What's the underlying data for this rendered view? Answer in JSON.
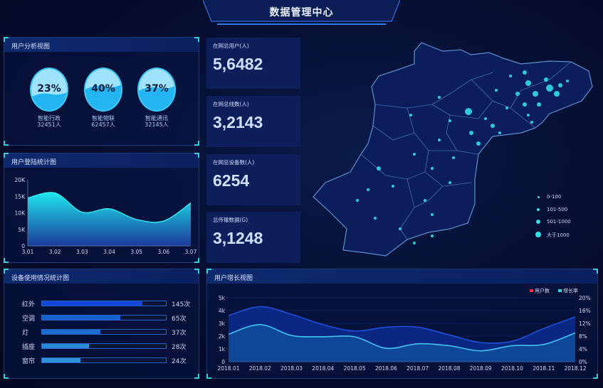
{
  "header": {
    "title": "数据管理中心"
  },
  "user_analysis": {
    "title": "用户分析视图",
    "items": [
      {
        "pct": "23%",
        "name": "智能行政",
        "count": "32451人",
        "level": 0.23
      },
      {
        "pct": "40%",
        "name": "智能物联",
        "count": "62457人",
        "level": 0.4
      },
      {
        "pct": "37%",
        "name": "智能通讯",
        "count": "32145人",
        "level": 0.37
      }
    ]
  },
  "stats": [
    {
      "label": "在网总用户(人)",
      "value": "5,6482"
    },
    {
      "label": "在网总线数(人)",
      "value": "3,2143"
    },
    {
      "label": "在网总设备数(人)",
      "value": "6254"
    },
    {
      "label": "总传输数据(G)",
      "value": "3,1248"
    }
  ],
  "map": {
    "legend": [
      "0-100",
      "101-500",
      "501-1000",
      "大于1000"
    ],
    "dot_color": "#2fe0e8"
  },
  "chart_data": [
    {
      "type": "area",
      "title": "用户登陆统计图",
      "categories": [
        "3.01",
        "3.02",
        "3.03",
        "3.04",
        "3.05",
        "3.06",
        "3.07"
      ],
      "values": [
        14500,
        16000,
        10200,
        11200,
        8000,
        7500,
        13000
      ],
      "ylim": [
        0,
        20000
      ],
      "yticks": [
        "0",
        "5K",
        "10K",
        "15K",
        "20K"
      ]
    },
    {
      "type": "bar",
      "title": "设备使用情况统计图",
      "orientation": "horizontal",
      "categories": [
        "红外",
        "空调",
        "灯",
        "插座",
        "窗帘"
      ],
      "labels": [
        "145次",
        "65次",
        "37次",
        "28次",
        "24次"
      ],
      "values": [
        145,
        65,
        37,
        28,
        24
      ],
      "fill_fraction": [
        0.81,
        0.63,
        0.47,
        0.38,
        0.31
      ],
      "colors": [
        "#1246d8",
        "#1560d0",
        "#1a6ed0",
        "#2a8ad8",
        "#2f92d8"
      ]
    },
    {
      "type": "area",
      "title": "用户增长视图",
      "categories": [
        "2018.01",
        "2018.02",
        "2018.03",
        "2018.04",
        "2018.05",
        "2018.06",
        "2018.07",
        "2018.08",
        "2018.09",
        "2018.10",
        "2018.11",
        "2018.12"
      ],
      "series": [
        {
          "name": "用户数",
          "axis": "left",
          "values": [
            3.6,
            4.3,
            3.7,
            2.9,
            2.4,
            2.7,
            2.7,
            2.1,
            1.5,
            1.6,
            2.6,
            3.5
          ],
          "legend_color": "#e8344a",
          "line_color": "#1d4fd8"
        },
        {
          "name": "增长率",
          "axis": "right",
          "values": [
            8.6,
            11.6,
            8.2,
            7.8,
            7.8,
            4.2,
            5.6,
            5.0,
            3.4,
            5.0,
            5.4,
            9.0
          ],
          "legend_color": "#2fd3e8",
          "line_color": "#41c4f0"
        }
      ],
      "yticks_left": [
        "0",
        "1k",
        "2k",
        "3k",
        "4k",
        "5k"
      ],
      "ylim_left": [
        0,
        5
      ],
      "yticks_right": [
        "0%",
        "4%",
        "8%",
        "12%",
        "16%",
        "20%"
      ],
      "ylim_right": [
        0,
        20
      ]
    }
  ]
}
